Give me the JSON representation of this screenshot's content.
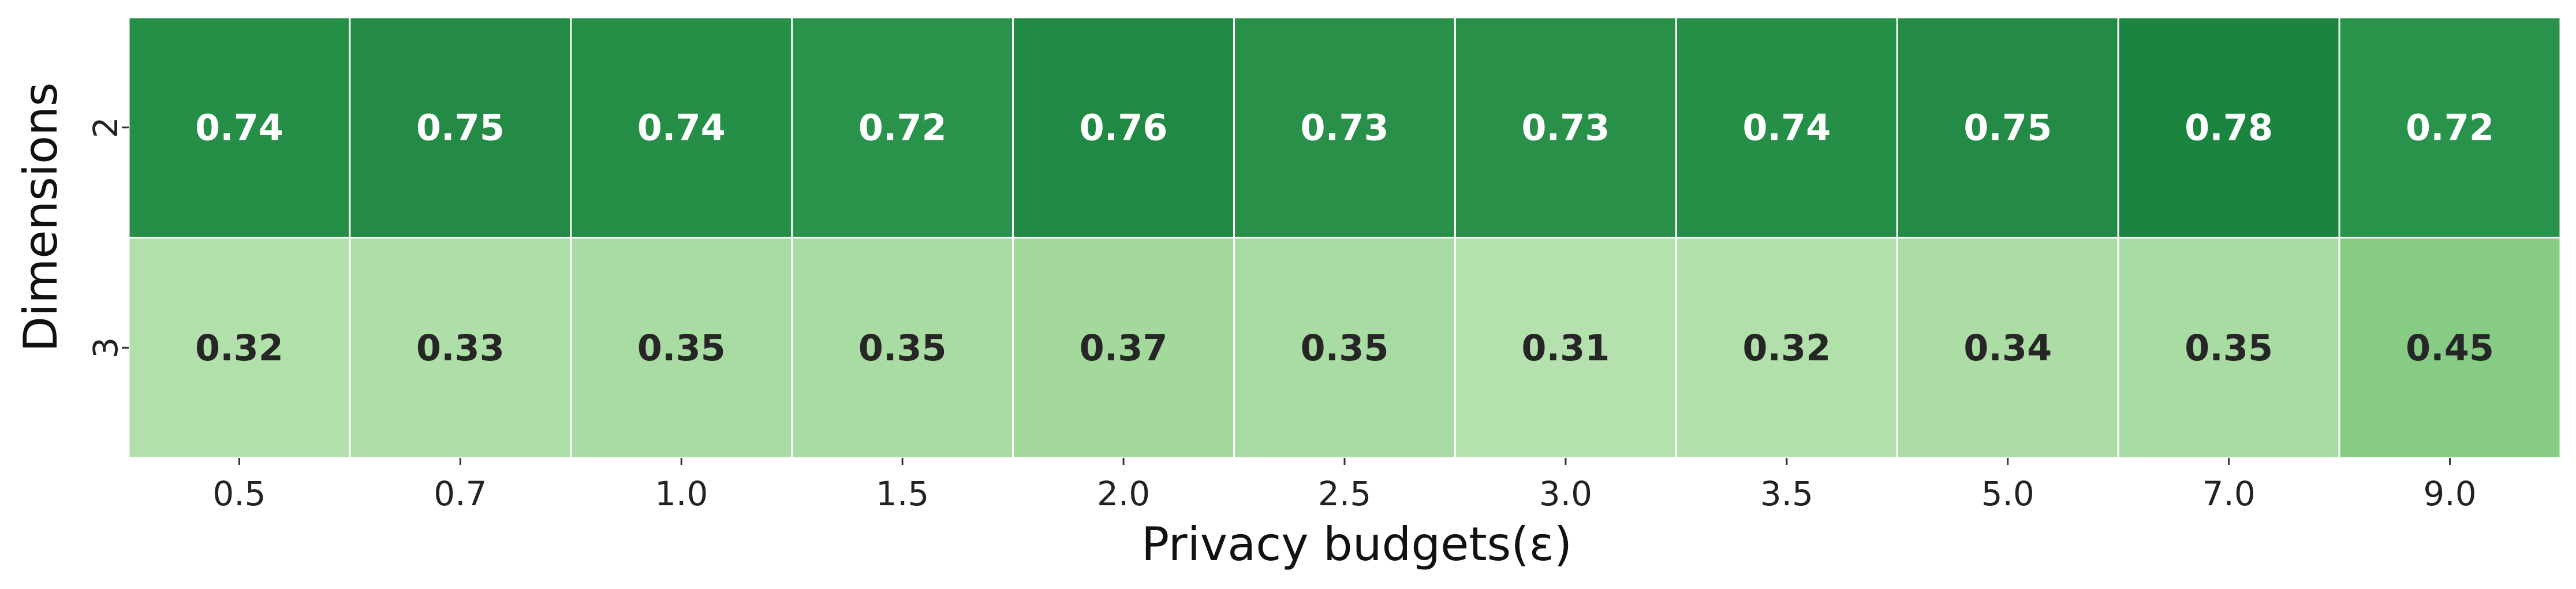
{
  "chart_data": {
    "type": "heatmap",
    "title": "",
    "xlabel": "Privacy budgets(ε)",
    "ylabel": "Dimensions",
    "x_categories": [
      "0.5",
      "0.7",
      "1.0",
      "1.5",
      "2.0",
      "2.5",
      "3.0",
      "3.5",
      "5.0",
      "7.0",
      "9.0"
    ],
    "y_categories": [
      "2",
      "3"
    ],
    "values": [
      [
        0.74,
        0.75,
        0.74,
        0.72,
        0.76,
        0.73,
        0.73,
        0.74,
        0.75,
        0.78,
        0.72
      ],
      [
        0.32,
        0.33,
        0.35,
        0.35,
        0.37,
        0.35,
        0.31,
        0.32,
        0.34,
        0.35,
        0.45
      ]
    ],
    "value_format": "0.00",
    "colormap": "Greens",
    "colors": {
      "low": "#c7e9c0",
      "mid": "#74c476",
      "high": "#006d2c",
      "grid_line": "#ffffff",
      "light_text": "#ffffff",
      "dark_text": "#262626"
    },
    "color_range": [
      0.0,
      1.0
    ],
    "colorbar": false,
    "grid": true
  }
}
